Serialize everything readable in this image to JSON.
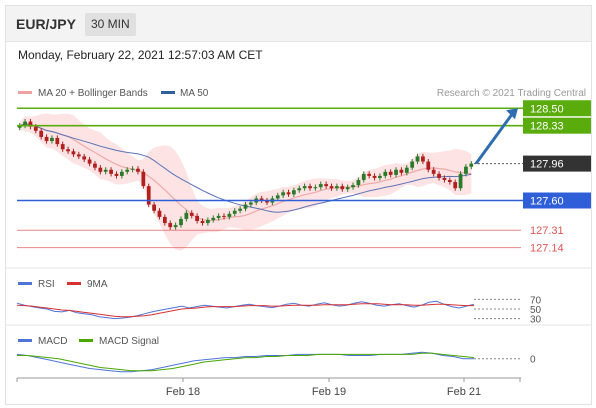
{
  "header": {
    "pair": "EUR/JPY",
    "timeframe": "30 MIN"
  },
  "datetime": "Monday, February 22, 2021 12:57:03 AM CET",
  "legend": {
    "ma_bb": "MA 20 + Bollinger Bands",
    "ma50": "MA 50",
    "credit": "Research © 2021 Trading Central"
  },
  "rsi_legend": {
    "rsi": "RSI",
    "ma9": "9MA"
  },
  "macd_legend": {
    "macd": "MACD",
    "signal": "MACD Signal"
  },
  "colors": {
    "bb_fill": "#fde3e3",
    "ma20": "#f0a8a8",
    "ma50": "#5b74b8",
    "resistance": "#5aab0c",
    "support": "#2f5fd8",
    "support2": "#e05555",
    "candle_up": "#2a7a2a",
    "candle_down": "#b0201f",
    "arrow": "#2e6eb0",
    "last_price": "#333333",
    "rsi": "#4f74d8",
    "rsi_ma": "#d83030",
    "macd": "#4f74d8",
    "macd_signal": "#4aa800"
  },
  "chart_data": [
    {
      "type": "candlestick",
      "title": "EUR/JPY 30 MIN",
      "y_range": [
        127.0,
        128.6
      ],
      "x_ticks": [
        "Feb 18",
        "Feb 19",
        "Feb 21"
      ],
      "close": [
        128.33,
        128.37,
        128.32,
        128.28,
        128.22,
        128.18,
        128.21,
        128.15,
        128.1,
        128.08,
        128.05,
        128.03,
        128.0,
        127.96,
        127.92,
        127.88,
        127.9,
        127.86,
        127.84,
        127.88,
        127.9,
        127.91,
        127.88,
        127.74,
        127.56,
        127.5,
        127.44,
        127.38,
        127.34,
        127.36,
        127.42,
        127.48,
        127.45,
        127.4,
        127.38,
        127.41,
        127.43,
        127.45,
        127.44,
        127.47,
        127.5,
        127.52,
        127.56,
        127.58,
        127.62,
        127.6,
        127.58,
        127.62,
        127.65,
        127.68,
        127.66,
        127.7,
        127.72,
        127.74,
        127.72,
        127.73,
        127.76,
        127.74,
        127.72,
        127.74,
        127.71,
        127.73,
        127.75,
        127.8,
        127.86,
        127.84,
        127.82,
        127.84,
        127.88,
        127.85,
        127.9,
        127.87,
        127.92,
        127.98,
        128.03,
        127.98,
        127.9,
        127.86,
        127.82,
        127.8,
        127.78,
        127.72,
        127.86,
        127.93,
        127.96
      ],
      "levels": [
        {
          "value": 128.5,
          "label": "128.50",
          "kind": "resistance"
        },
        {
          "value": 128.33,
          "label": "128.33",
          "kind": "resistance"
        },
        {
          "value": 127.96,
          "label": "127.96",
          "kind": "last"
        },
        {
          "value": 127.6,
          "label": "127.60",
          "kind": "support"
        },
        {
          "value": 127.31,
          "label": "127.31",
          "kind": "support2"
        },
        {
          "value": 127.14,
          "label": "127.14",
          "kind": "support2"
        }
      ],
      "series": [
        {
          "name": "MA 20 + Bollinger Bands"
        },
        {
          "name": "MA 50"
        }
      ],
      "projection": {
        "from": 127.96,
        "to": 128.5,
        "direction": "up"
      }
    },
    {
      "type": "line",
      "title": "RSI",
      "levels": [
        70,
        50,
        30
      ],
      "level_labels": [
        "70",
        "50",
        "30"
      ],
      "series": [
        {
          "name": "RSI",
          "values": [
            62,
            58,
            55,
            52,
            50,
            45,
            44,
            47,
            42,
            40,
            38,
            34,
            32,
            30,
            31,
            33,
            36,
            40,
            44,
            47,
            50,
            53,
            56,
            52,
            55,
            58,
            56,
            54,
            52,
            55,
            58,
            60,
            57,
            55,
            53,
            56,
            60,
            62,
            58,
            56,
            60,
            63,
            59,
            56,
            58,
            62,
            65,
            62,
            58,
            56,
            59,
            61,
            57,
            54,
            58,
            64,
            66,
            60,
            55,
            52,
            56,
            60
          ]
        },
        {
          "name": "9MA",
          "values": [
            58,
            57,
            56,
            54,
            52,
            50,
            48,
            47,
            45,
            43,
            41,
            39,
            37,
            35,
            34,
            34,
            35,
            36,
            38,
            41,
            44,
            47,
            50,
            51,
            52,
            54,
            55,
            55,
            55,
            55,
            56,
            57,
            57,
            57,
            56,
            56,
            57,
            58,
            58,
            58,
            58,
            59,
            59,
            59,
            59,
            60,
            61,
            61,
            61,
            60,
            59,
            59,
            59,
            58,
            58,
            59,
            60,
            60,
            59,
            58,
            57,
            57
          ]
        }
      ]
    },
    {
      "type": "line",
      "title": "MACD",
      "levels": [
        0
      ],
      "level_labels": [
        "0"
      ],
      "series": [
        {
          "name": "MACD",
          "values": [
            0.04,
            0.03,
            0.01,
            -0.01,
            -0.03,
            -0.05,
            -0.07,
            -0.09,
            -0.1,
            -0.11,
            -0.12,
            -0.12,
            -0.11,
            -0.1,
            -0.08,
            -0.06,
            -0.04,
            -0.02,
            -0.01,
            0.0,
            0.01,
            0.01,
            0.02,
            0.02,
            0.03,
            0.03,
            0.03,
            0.04,
            0.04,
            0.04,
            0.04,
            0.04,
            0.03,
            0.03,
            0.03,
            0.04,
            0.04,
            0.04,
            0.05,
            0.06,
            0.05,
            0.03,
            0.02,
            0.0,
            0.0
          ]
        },
        {
          "name": "MACD Signal",
          "values": [
            0.03,
            0.03,
            0.02,
            0.01,
            0.0,
            -0.02,
            -0.04,
            -0.06,
            -0.08,
            -0.09,
            -0.1,
            -0.11,
            -0.11,
            -0.11,
            -0.1,
            -0.09,
            -0.07,
            -0.05,
            -0.03,
            -0.02,
            -0.01,
            0.0,
            0.01,
            0.01,
            0.02,
            0.02,
            0.03,
            0.03,
            0.03,
            0.04,
            0.04,
            0.04,
            0.04,
            0.04,
            0.04,
            0.04,
            0.04,
            0.04,
            0.04,
            0.05,
            0.05,
            0.04,
            0.03,
            0.02,
            0.01
          ]
        }
      ]
    }
  ]
}
